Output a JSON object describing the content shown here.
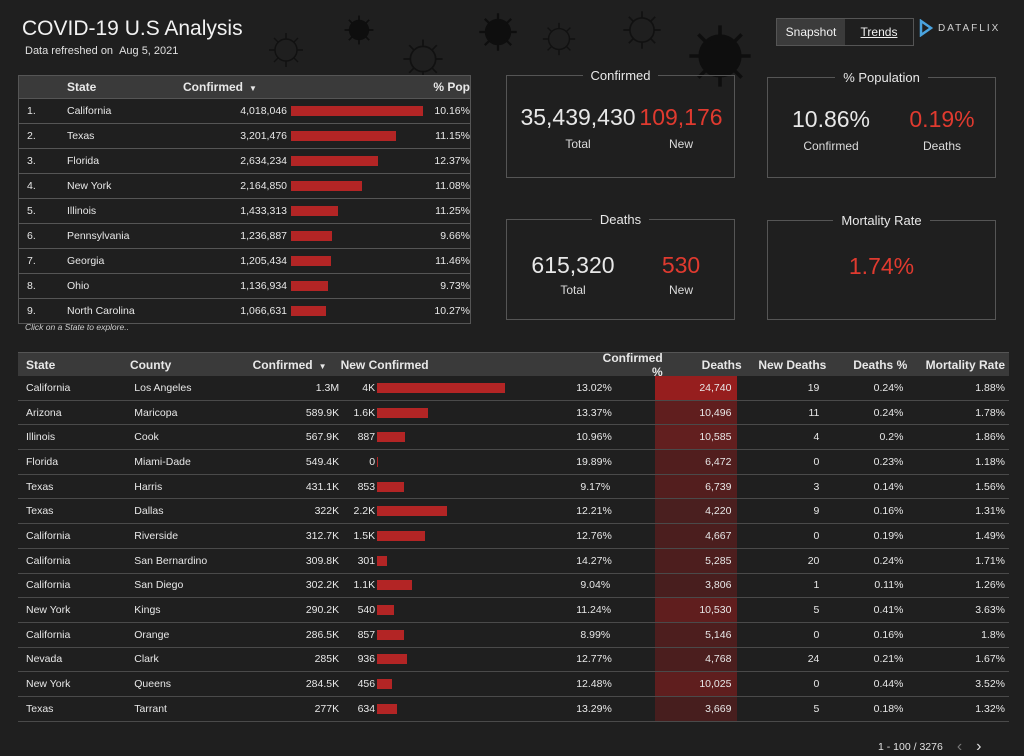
{
  "header": {
    "title": "COVID-19 U.S Analysis",
    "refreshed_label": "Data refreshed on",
    "refreshed_date": "Aug 5, 2021"
  },
  "toolbar": {
    "tabs": [
      {
        "label": "Snapshot"
      },
      {
        "label": "Trends"
      }
    ],
    "logo_text": "DATAFLIX"
  },
  "state_table": {
    "headers": {
      "state": "State",
      "confirmed": "Confirmed",
      "pop": "% Pop"
    },
    "max_confirmed": 4018046,
    "rows": [
      {
        "rank": "1.",
        "state": "California",
        "confirmed": "4,018,046",
        "value": 4018046,
        "pop": "10.16%"
      },
      {
        "rank": "2.",
        "state": "Texas",
        "confirmed": "3,201,476",
        "value": 3201476,
        "pop": "11.15%"
      },
      {
        "rank": "3.",
        "state": "Florida",
        "confirmed": "2,634,234",
        "value": 2634234,
        "pop": "12.37%"
      },
      {
        "rank": "4.",
        "state": "New York",
        "confirmed": "2,164,850",
        "value": 2164850,
        "pop": "11.08%"
      },
      {
        "rank": "5.",
        "state": "Illinois",
        "confirmed": "1,433,313",
        "value": 1433313,
        "pop": "11.25%"
      },
      {
        "rank": "6.",
        "state": "Pennsylvania",
        "confirmed": "1,236,887",
        "value": 1236887,
        "pop": "9.66%"
      },
      {
        "rank": "7.",
        "state": "Georgia",
        "confirmed": "1,205,434",
        "value": 1205434,
        "pop": "11.46%"
      },
      {
        "rank": "8.",
        "state": "Ohio",
        "confirmed": "1,136,934",
        "value": 1136934,
        "pop": "9.73%"
      },
      {
        "rank": "9.",
        "state": "North Carolina",
        "confirmed": "1,066,631",
        "value": 1066631,
        "pop": "10.27%"
      }
    ],
    "hint": "Click on a State to explore.."
  },
  "kpis": {
    "confirmed": {
      "title": "Confirmed",
      "total": "35,439,430",
      "total_label": "Total",
      "new": "109,176",
      "new_label": "New"
    },
    "population": {
      "title": "% Population",
      "confirmed": "10.86%",
      "confirmed_label": "Confirmed",
      "deaths": "0.19%",
      "deaths_label": "Deaths"
    },
    "deaths": {
      "title": "Deaths",
      "total": "615,320",
      "total_label": "Total",
      "new": "530",
      "new_label": "New"
    },
    "mortality": {
      "title": "Mortality Rate",
      "value": "1.74%"
    }
  },
  "county_table": {
    "headers": {
      "state": "State",
      "county": "County",
      "confirmed": "Confirmed",
      "new_confirmed": "New Confirmed",
      "confirmed_pct": "Confirmed %",
      "deaths": "Deaths",
      "new_deaths": "New Deaths",
      "deaths_pct": "Deaths %",
      "mortality": "Mortality Rate"
    },
    "max_new": 4000,
    "max_deaths": 24740,
    "rows": [
      {
        "state": "California",
        "county": "Los Angeles",
        "confirmed": "1.3M",
        "new": "4K",
        "new_value": 4000,
        "confirmed_pct": "13.02%",
        "deaths": "24,740",
        "deaths_value": 24740,
        "new_deaths": "19",
        "deaths_pct": "0.24%",
        "mortality": "1.88%"
      },
      {
        "state": "Arizona",
        "county": "Maricopa",
        "confirmed": "589.9K",
        "new": "1.6K",
        "new_value": 1600,
        "confirmed_pct": "13.37%",
        "deaths": "10,496",
        "deaths_value": 10496,
        "new_deaths": "11",
        "deaths_pct": "0.24%",
        "mortality": "1.78%"
      },
      {
        "state": "Illinois",
        "county": "Cook",
        "confirmed": "567.9K",
        "new": "887",
        "new_value": 887,
        "confirmed_pct": "10.96%",
        "deaths": "10,585",
        "deaths_value": 10585,
        "new_deaths": "4",
        "deaths_pct": "0.2%",
        "mortality": "1.86%"
      },
      {
        "state": "Florida",
        "county": "Miami-Dade",
        "confirmed": "549.4K",
        "new": "0",
        "new_value": 0,
        "confirmed_pct": "19.89%",
        "deaths": "6,472",
        "deaths_value": 6472,
        "new_deaths": "0",
        "deaths_pct": "0.23%",
        "mortality": "1.18%"
      },
      {
        "state": "Texas",
        "county": "Harris",
        "confirmed": "431.1K",
        "new": "853",
        "new_value": 853,
        "confirmed_pct": "9.17%",
        "deaths": "6,739",
        "deaths_value": 6739,
        "new_deaths": "3",
        "deaths_pct": "0.14%",
        "mortality": "1.56%"
      },
      {
        "state": "Texas",
        "county": "Dallas",
        "confirmed": "322K",
        "new": "2.2K",
        "new_value": 2200,
        "confirmed_pct": "12.21%",
        "deaths": "4,220",
        "deaths_value": 4220,
        "new_deaths": "9",
        "deaths_pct": "0.16%",
        "mortality": "1.31%"
      },
      {
        "state": "California",
        "county": "Riverside",
        "confirmed": "312.7K",
        "new": "1.5K",
        "new_value": 1500,
        "confirmed_pct": "12.76%",
        "deaths": "4,667",
        "deaths_value": 4667,
        "new_deaths": "0",
        "deaths_pct": "0.19%",
        "mortality": "1.49%"
      },
      {
        "state": "California",
        "county": "San Bernardino",
        "confirmed": "309.8K",
        "new": "301",
        "new_value": 301,
        "confirmed_pct": "14.27%",
        "deaths": "5,285",
        "deaths_value": 5285,
        "new_deaths": "20",
        "deaths_pct": "0.24%",
        "mortality": "1.71%"
      },
      {
        "state": "California",
        "county": "San Diego",
        "confirmed": "302.2K",
        "new": "1.1K",
        "new_value": 1100,
        "confirmed_pct": "9.04%",
        "deaths": "3,806",
        "deaths_value": 3806,
        "new_deaths": "1",
        "deaths_pct": "0.11%",
        "mortality": "1.26%"
      },
      {
        "state": "New York",
        "county": "Kings",
        "confirmed": "290.2K",
        "new": "540",
        "new_value": 540,
        "confirmed_pct": "11.24%",
        "deaths": "10,530",
        "deaths_value": 10530,
        "new_deaths": "5",
        "deaths_pct": "0.41%",
        "mortality": "3.63%"
      },
      {
        "state": "California",
        "county": "Orange",
        "confirmed": "286.5K",
        "new": "857",
        "new_value": 857,
        "confirmed_pct": "8.99%",
        "deaths": "5,146",
        "deaths_value": 5146,
        "new_deaths": "0",
        "deaths_pct": "0.16%",
        "mortality": "1.8%"
      },
      {
        "state": "Nevada",
        "county": "Clark",
        "confirmed": "285K",
        "new": "936",
        "new_value": 936,
        "confirmed_pct": "12.77%",
        "deaths": "4,768",
        "deaths_value": 4768,
        "new_deaths": "24",
        "deaths_pct": "0.21%",
        "mortality": "1.67%"
      },
      {
        "state": "New York",
        "county": "Queens",
        "confirmed": "284.5K",
        "new": "456",
        "new_value": 456,
        "confirmed_pct": "12.48%",
        "deaths": "10,025",
        "deaths_value": 10025,
        "new_deaths": "0",
        "deaths_pct": "0.44%",
        "mortality": "3.52%"
      },
      {
        "state": "Texas",
        "county": "Tarrant",
        "confirmed": "277K",
        "new": "634",
        "new_value": 634,
        "confirmed_pct": "13.29%",
        "deaths": "3,669",
        "deaths_value": 3669,
        "new_deaths": "5",
        "deaths_pct": "0.18%",
        "mortality": "1.32%"
      }
    ]
  },
  "pager": {
    "range": "1 - 100 / 3276"
  },
  "colors": {
    "bar": "#b32525",
    "accent_red": "#e03a2f",
    "background": "#1f1f1f"
  }
}
